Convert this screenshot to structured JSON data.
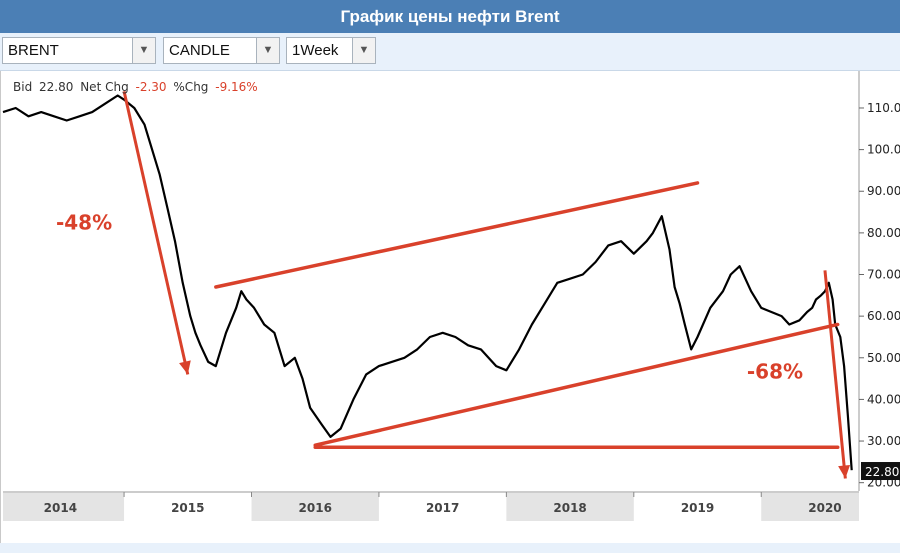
{
  "title": "График цены нефти Brent",
  "toolbar": {
    "symbol": "BRENT",
    "chart_type": "CANDLE",
    "interval": "1Week"
  },
  "quote": {
    "bid_label": "Bid",
    "bid_value": "22.80",
    "net_chg_label": "Net Chg",
    "net_chg_value": "-2.30",
    "pct_chg_label": "%Chg",
    "pct_chg_value": "-9.16%"
  },
  "colors": {
    "price_line": "#000000",
    "annotation": "#d9412b",
    "year_band": "#e4e4e4",
    "negative": "#d9412b"
  },
  "chart_data": {
    "type": "line",
    "title": "График цены нефти Brent",
    "x": [
      2013.55,
      2013.65,
      2013.75,
      2013.85,
      2013.95,
      2014.05,
      2014.15,
      2014.25,
      2014.35,
      2014.45,
      2014.5,
      2014.58,
      2014.66,
      2014.72,
      2014.78,
      2014.84,
      2014.9,
      2014.96,
      2015.02,
      2015.06,
      2015.1,
      2015.16,
      2015.22,
      2015.3,
      2015.38,
      2015.42,
      2015.46,
      2015.52,
      2015.6,
      2015.68,
      2015.76,
      2015.84,
      2015.9,
      2015.96,
      2016.05,
      2016.12,
      2016.2,
      2016.3,
      2016.4,
      2016.5,
      2016.6,
      2016.7,
      2016.8,
      2016.9,
      2017.0,
      2017.1,
      2017.2,
      2017.3,
      2017.42,
      2017.5,
      2017.6,
      2017.7,
      2017.8,
      2017.9,
      2018.0,
      2018.1,
      2018.2,
      2018.3,
      2018.4,
      2018.5,
      2018.6,
      2018.65,
      2018.72,
      2018.78,
      2018.82,
      2018.86,
      2018.9,
      2018.95,
      2019.0,
      2019.1,
      2019.2,
      2019.26,
      2019.33,
      2019.42,
      2019.5,
      2019.58,
      2019.66,
      2019.72,
      2019.8,
      2019.86,
      2019.9,
      2019.93,
      2019.97,
      2020.0,
      2020.03,
      2020.06,
      2020.08,
      2020.12,
      2020.15,
      2020.18,
      2020.21
    ],
    "values": [
      109,
      110,
      108,
      109,
      108,
      107,
      108,
      109,
      111,
      113,
      112,
      110,
      106,
      100,
      94,
      86,
      78,
      68,
      60,
      56,
      53,
      49,
      48,
      56,
      62,
      66,
      64,
      62,
      58,
      56,
      48,
      50,
      45,
      38,
      34,
      31,
      33,
      40,
      46,
      48,
      49,
      50,
      52,
      55,
      56,
      55,
      53,
      52,
      48,
      47,
      52,
      58,
      63,
      68,
      69,
      70,
      73,
      77,
      78,
      75,
      78,
      80,
      84,
      76,
      67,
      63,
      58,
      52,
      55,
      62,
      66,
      70,
      72,
      66,
      62,
      61,
      60,
      58,
      59,
      61,
      62,
      64,
      65,
      66,
      68,
      64,
      58,
      55,
      48,
      36,
      23
    ],
    "ylim": [
      18,
      116
    ],
    "xlim": [
      2013.55,
      2020.22
    ],
    "y_ticks": [
      "20.00",
      "30.00",
      "40.00",
      "50.00",
      "60.00",
      "70.00",
      "80.00",
      "90.00",
      "100.00",
      "110.00"
    ],
    "y_tick_values": [
      20,
      30,
      40,
      50,
      60,
      70,
      80,
      90,
      100,
      110
    ],
    "x_ticks": [
      "2014",
      "2015",
      "2016",
      "2017",
      "2018",
      "2019",
      "2020"
    ],
    "x_tick_values": [
      2014.0,
      2015.0,
      2016.0,
      2017.0,
      2018.0,
      2019.0,
      2020.0
    ],
    "last_price_label": "22.80",
    "last_price": 22.8,
    "annotations": [
      {
        "label": "-48%",
        "from": [
          2014.5,
          114
        ],
        "to": [
          2015.0,
          46
        ]
      },
      {
        "label": "-68%",
        "from": [
          2020.0,
          71
        ],
        "to": [
          2020.16,
          21
        ]
      }
    ],
    "trend_lines": [
      {
        "from": [
          2015.22,
          67
        ],
        "to": [
          2019.0,
          92
        ]
      },
      {
        "from": [
          2016.0,
          29
        ],
        "to": [
          2020.1,
          58
        ]
      },
      {
        "from": [
          2016.0,
          28.5
        ],
        "to": [
          2020.1,
          28.5
        ]
      }
    ]
  }
}
